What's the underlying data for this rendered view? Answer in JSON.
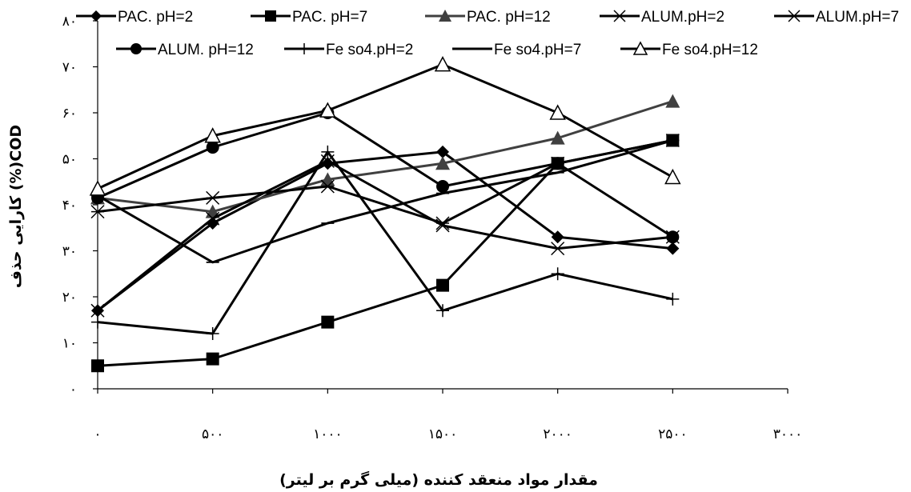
{
  "chart_data": {
    "type": "line",
    "xlabel": "مقدار مواد منعقد کننده  (میلی گرم بر لیتر)",
    "ylabel": "COD(%) کارایی حذف",
    "x": [
      0,
      500,
      1000,
      1500,
      2000,
      2500
    ],
    "xlim": [
      0,
      3000
    ],
    "ylim": [
      0,
      80
    ],
    "x_ticks": [
      0,
      500,
      1000,
      1500,
      2000,
      2500,
      3000
    ],
    "x_tick_labels": [
      "۰",
      "۵۰۰",
      "۱۰۰۰",
      "۱۵۰۰",
      "۲۰۰۰",
      "۲۵۰۰",
      "۳۰۰۰"
    ],
    "y_ticks": [
      0,
      10,
      20,
      30,
      40,
      50,
      60,
      70,
      80
    ],
    "y_tick_labels": [
      "۰",
      "۱۰",
      "۲۰",
      "۳۰",
      "۴۰",
      "۵۰",
      "۶۰",
      "۷۰",
      "۸۰"
    ],
    "grid": false,
    "legend_position": "top",
    "series": [
      {
        "name": "PAC. pH=2",
        "marker": "diamond",
        "color": "#000000",
        "values": [
          17,
          36,
          49,
          51.5,
          33,
          30.5
        ]
      },
      {
        "name": "PAC. pH=7",
        "marker": "square",
        "color": "#000000",
        "values": [
          5,
          6.5,
          14.5,
          22.5,
          49,
          54
        ]
      },
      {
        "name": "PAC. pH=12",
        "marker": "triangle",
        "color": "#404040",
        "values": [
          41.5,
          38.5,
          45.5,
          49,
          54.5,
          62.5
        ]
      },
      {
        "name": "ALUM.pH=2",
        "marker": "x",
        "color": "#000000",
        "values": [
          17,
          37,
          49.5,
          35.5,
          30.5,
          33
        ]
      },
      {
        "name": "ALUM.pH=7",
        "marker": "asterisk",
        "color": "#000000",
        "values": [
          38.5,
          41.5,
          44,
          36,
          49,
          54
        ]
      },
      {
        "name": "ALUM. pH=12",
        "marker": "circle",
        "color": "#000000",
        "values": [
          41.5,
          52.5,
          60,
          44,
          49,
          33
        ]
      },
      {
        "name": "Fe so4.pH=2",
        "marker": "plus",
        "color": "#000000",
        "values": [
          14.5,
          12,
          51.5,
          17,
          25,
          19.5
        ]
      },
      {
        "name": "Fe so4.pH=7",
        "marker": "dash",
        "color": "#000000",
        "values": [
          42,
          27.5,
          36,
          42.5,
          47,
          54
        ]
      },
      {
        "name": "Fe so4.pH=12",
        "marker": "triangle-open",
        "color": "#000000",
        "values": [
          43.5,
          55,
          60.5,
          70.5,
          60,
          46
        ]
      }
    ]
  }
}
